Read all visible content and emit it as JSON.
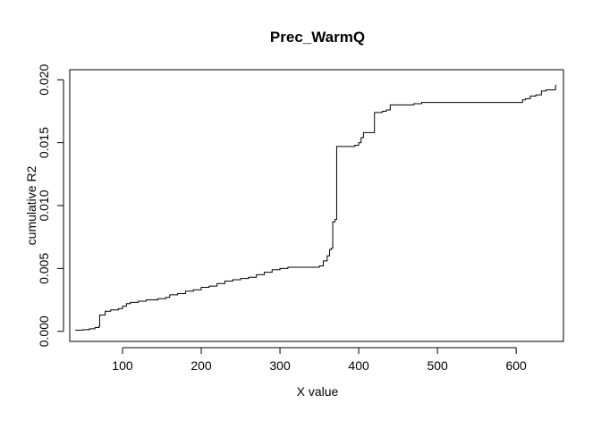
{
  "chart_data": {
    "type": "line",
    "title": "Prec_WarmQ",
    "xlabel": "X value",
    "ylabel": "cumulative R2",
    "xlim": [
      33,
      660
    ],
    "ylim": [
      -0.0008,
      0.0208
    ],
    "xticks": [
      100,
      200,
      300,
      400,
      500,
      600
    ],
    "xtick_labels": [
      "100",
      "200",
      "300",
      "400",
      "500",
      "600"
    ],
    "yticks": [
      0.0,
      0.005,
      0.01,
      0.015,
      0.02
    ],
    "ytick_labels": [
      "0.000",
      "0.005",
      "0.010",
      "0.015",
      "0.020"
    ],
    "grid": false,
    "step": true,
    "series": [
      {
        "x": [
          40,
          50,
          58,
          65,
          70,
          71,
          72,
          78,
          85,
          95,
          100,
          105,
          110,
          120,
          130,
          145,
          155,
          160,
          170,
          180,
          190,
          200,
          210,
          220,
          230,
          240,
          250,
          260,
          270,
          280,
          290,
          300,
          310,
          320,
          330,
          340,
          350,
          355,
          360,
          363,
          365,
          367,
          370,
          372,
          374,
          380,
          390,
          395,
          400,
          403,
          406,
          410,
          415,
          420,
          430,
          435,
          440,
          445,
          450,
          460,
          470,
          480,
          490,
          500,
          550,
          600,
          608,
          612,
          618,
          625,
          632,
          638,
          645,
          650
        ],
        "y": [
          0.0001,
          0.00013,
          0.0002,
          0.0003,
          0.0004,
          0.0013,
          0.0013,
          0.0016,
          0.0017,
          0.0018,
          0.002,
          0.0022,
          0.0023,
          0.0024,
          0.0025,
          0.0026,
          0.0027,
          0.0029,
          0.003,
          0.0032,
          0.0033,
          0.0035,
          0.0036,
          0.0038,
          0.004,
          0.0041,
          0.0042,
          0.0043,
          0.0045,
          0.0047,
          0.0049,
          0.005,
          0.0051,
          0.0051,
          0.0051,
          0.0051,
          0.0052,
          0.0056,
          0.006,
          0.0065,
          0.0066,
          0.0087,
          0.0089,
          0.0147,
          0.0147,
          0.0147,
          0.0147,
          0.0148,
          0.015,
          0.0154,
          0.0158,
          0.0158,
          0.0158,
          0.0174,
          0.0175,
          0.0176,
          0.018,
          0.018,
          0.018,
          0.018,
          0.0181,
          0.0182,
          0.0182,
          0.0182,
          0.0182,
          0.0182,
          0.0184,
          0.0185,
          0.0187,
          0.0188,
          0.0191,
          0.0192,
          0.0192,
          0.0196
        ]
      }
    ]
  }
}
